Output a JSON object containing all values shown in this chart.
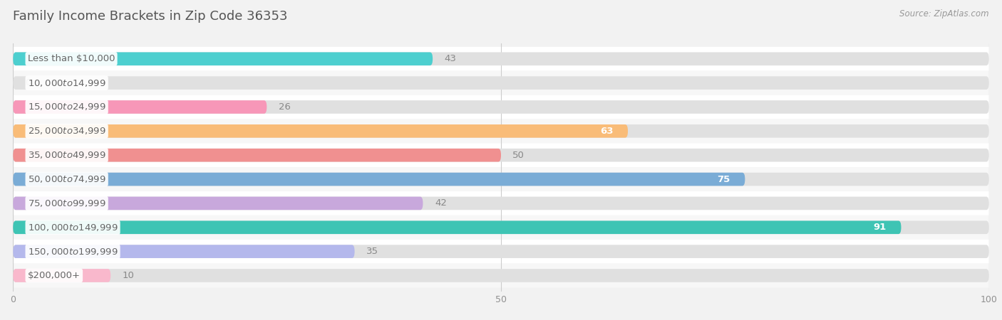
{
  "title": "Family Income Brackets in Zip Code 36353",
  "source": "Source: ZipAtlas.com",
  "categories": [
    "Less than $10,000",
    "$10,000 to $14,999",
    "$15,000 to $24,999",
    "$25,000 to $34,999",
    "$35,000 to $49,999",
    "$50,000 to $74,999",
    "$75,000 to $99,999",
    "$100,000 to $149,999",
    "$150,000 to $199,999",
    "$200,000+"
  ],
  "values": [
    43,
    0,
    26,
    63,
    50,
    75,
    42,
    91,
    35,
    10
  ],
  "colors": [
    "#4dcfcf",
    "#b0aade",
    "#f797b8",
    "#f9bc78",
    "#f09090",
    "#7aacd6",
    "#c8a8dc",
    "#3ec4b4",
    "#b4b8ec",
    "#f9b8cc"
  ],
  "xlim": [
    0,
    100
  ],
  "fig_bg": "#f2f2f2",
  "row_bg_odd": "#ffffff",
  "row_bg_even": "#f7f7f7",
  "bar_track_color": "#e0e0e0",
  "label_box_color": "#ffffff",
  "title_color": "#555555",
  "label_color": "#666666",
  "value_color_outside": "#888888",
  "title_fontsize": 13,
  "label_fontsize": 9.5,
  "value_fontsize": 9.5,
  "source_fontsize": 8.5,
  "bar_height": 0.55,
  "n_bars": 10,
  "xticks": [
    0,
    50,
    100
  ]
}
